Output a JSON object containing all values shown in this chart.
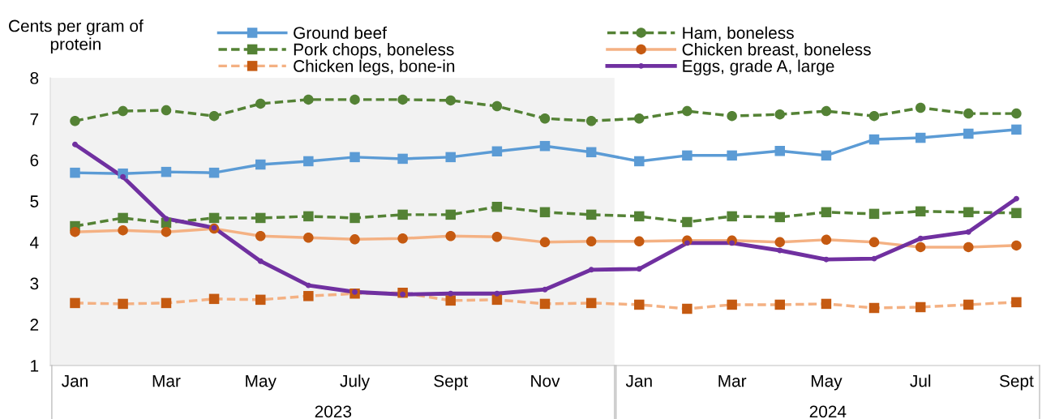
{
  "chart_data": {
    "type": "line",
    "ylabel": "Cents per gram of\nprotein",
    "x": [
      "2023-01",
      "2023-02",
      "2023-03",
      "2023-04",
      "2023-05",
      "2023-06",
      "2023-07",
      "2023-08",
      "2023-09",
      "2023-10",
      "2023-11",
      "2023-12",
      "2024-01",
      "2024-02",
      "2024-03",
      "2024-04",
      "2024-05",
      "2024-06",
      "2024-07",
      "2024-08",
      "2024-09"
    ],
    "xlim": [
      "2022-12-16",
      "2024-09-16"
    ],
    "xticks": [
      {
        "value": "2023-01",
        "label": "Jan"
      },
      {
        "value": "2023-03",
        "label": "Mar"
      },
      {
        "value": "2023-05",
        "label": "May"
      },
      {
        "value": "2023-07",
        "label": "July"
      },
      {
        "value": "2023-09",
        "label": "Sept"
      },
      {
        "value": "2023-11",
        "label": "Nov"
      },
      {
        "value": "2024-01",
        "label": "Jan"
      },
      {
        "value": "2024-03",
        "label": "Mar"
      },
      {
        "value": "2024-05",
        "label": "May"
      },
      {
        "value": "2024-07",
        "label": "Jul"
      },
      {
        "value": "2024-09",
        "label": "Sept"
      }
    ],
    "ylim": [
      1,
      8
    ],
    "yticks": [
      1,
      2,
      3,
      4,
      5,
      6,
      7,
      8
    ],
    "grid": false,
    "legend": "top",
    "annotations": [
      "2023",
      "2024"
    ],
    "bands": [
      {
        "axis": "x",
        "from": "2022-12-16",
        "to": "2023-12-16",
        "color": "#f2f2f2"
      }
    ],
    "series": [
      {
        "name": "Ground beef",
        "color": "#5b9bd5",
        "marker": "square",
        "line_style": "solid",
        "values": [
          5.69,
          5.67,
          5.71,
          5.69,
          5.89,
          5.97,
          6.07,
          6.03,
          6.07,
          6.21,
          6.34,
          6.19,
          5.97,
          6.11,
          6.11,
          6.22,
          6.11,
          6.5,
          6.54,
          6.64,
          6.74
        ]
      },
      {
        "name": "Ham, boneless",
        "color": "#548235",
        "marker": "circle",
        "line_style": "dashed",
        "values": [
          6.95,
          7.19,
          7.21,
          7.07,
          7.37,
          7.47,
          7.47,
          7.47,
          7.45,
          7.31,
          7.01,
          6.95,
          7.01,
          7.19,
          7.07,
          7.11,
          7.19,
          7.07,
          7.27,
          7.13,
          7.13
        ]
      },
      {
        "name": "Pork chops, boneless",
        "color": "#548235",
        "marker": "square",
        "line_style": "dashed",
        "values": [
          4.39,
          4.59,
          4.47,
          4.59,
          4.59,
          4.63,
          4.59,
          4.67,
          4.67,
          4.86,
          4.73,
          4.67,
          4.63,
          4.49,
          4.63,
          4.61,
          4.73,
          4.69,
          4.75,
          4.73,
          4.71
        ]
      },
      {
        "name": "Chicken breast, boneless",
        "color": "#f4b183",
        "marker": "circle",
        "line_style": "solid",
        "colors": [
          "#c55a11",
          "#c55a11",
          "#c55a11",
          "#c55a11",
          "#c55a11",
          "#c55a11",
          "#c55a11",
          "#c55a11",
          "#c55a11",
          "#c55a11",
          "#c55a11",
          "#c55a11",
          "#c55a11",
          "#c55a11",
          "#c55a11",
          "#c55a11",
          "#c55a11",
          "#c55a11",
          "#c55a11",
          "#c55a11",
          "#c55a11"
        ],
        "values": [
          4.25,
          4.29,
          4.25,
          4.33,
          4.15,
          4.11,
          4.07,
          4.09,
          4.15,
          4.13,
          4.0,
          4.02,
          4.02,
          4.04,
          4.04,
          4.0,
          4.06,
          4.0,
          3.88,
          3.88,
          3.92
        ]
      },
      {
        "name": "Chicken legs, bone-in",
        "color": "#f4b183",
        "marker": "square",
        "line_style": "dashed",
        "colors": [
          "#c55a11",
          "#c55a11",
          "#c55a11",
          "#c55a11",
          "#c55a11",
          "#c55a11",
          "#c55a11",
          "#c55a11",
          "#c55a11",
          "#c55a11",
          "#c55a11",
          "#c55a11",
          "#c55a11",
          "#c55a11",
          "#c55a11",
          "#c55a11",
          "#c55a11",
          "#c55a11",
          "#c55a11",
          "#c55a11",
          "#c55a11"
        ],
        "values": [
          2.52,
          2.5,
          2.52,
          2.62,
          2.6,
          2.69,
          2.75,
          2.77,
          2.58,
          2.6,
          2.5,
          2.52,
          2.48,
          2.38,
          2.48,
          2.48,
          2.5,
          2.4,
          2.42,
          2.48,
          2.54
        ]
      },
      {
        "name": "Eggs, grade A, large",
        "color": "#7030a0",
        "marker": "circle",
        "line_style": "solid",
        "values": [
          6.38,
          5.59,
          4.57,
          4.35,
          3.54,
          2.95,
          2.79,
          2.73,
          2.75,
          2.75,
          2.85,
          3.33,
          3.35,
          3.98,
          3.98,
          3.8,
          3.58,
          3.6,
          4.09,
          4.25,
          5.06
        ]
      }
    ]
  }
}
